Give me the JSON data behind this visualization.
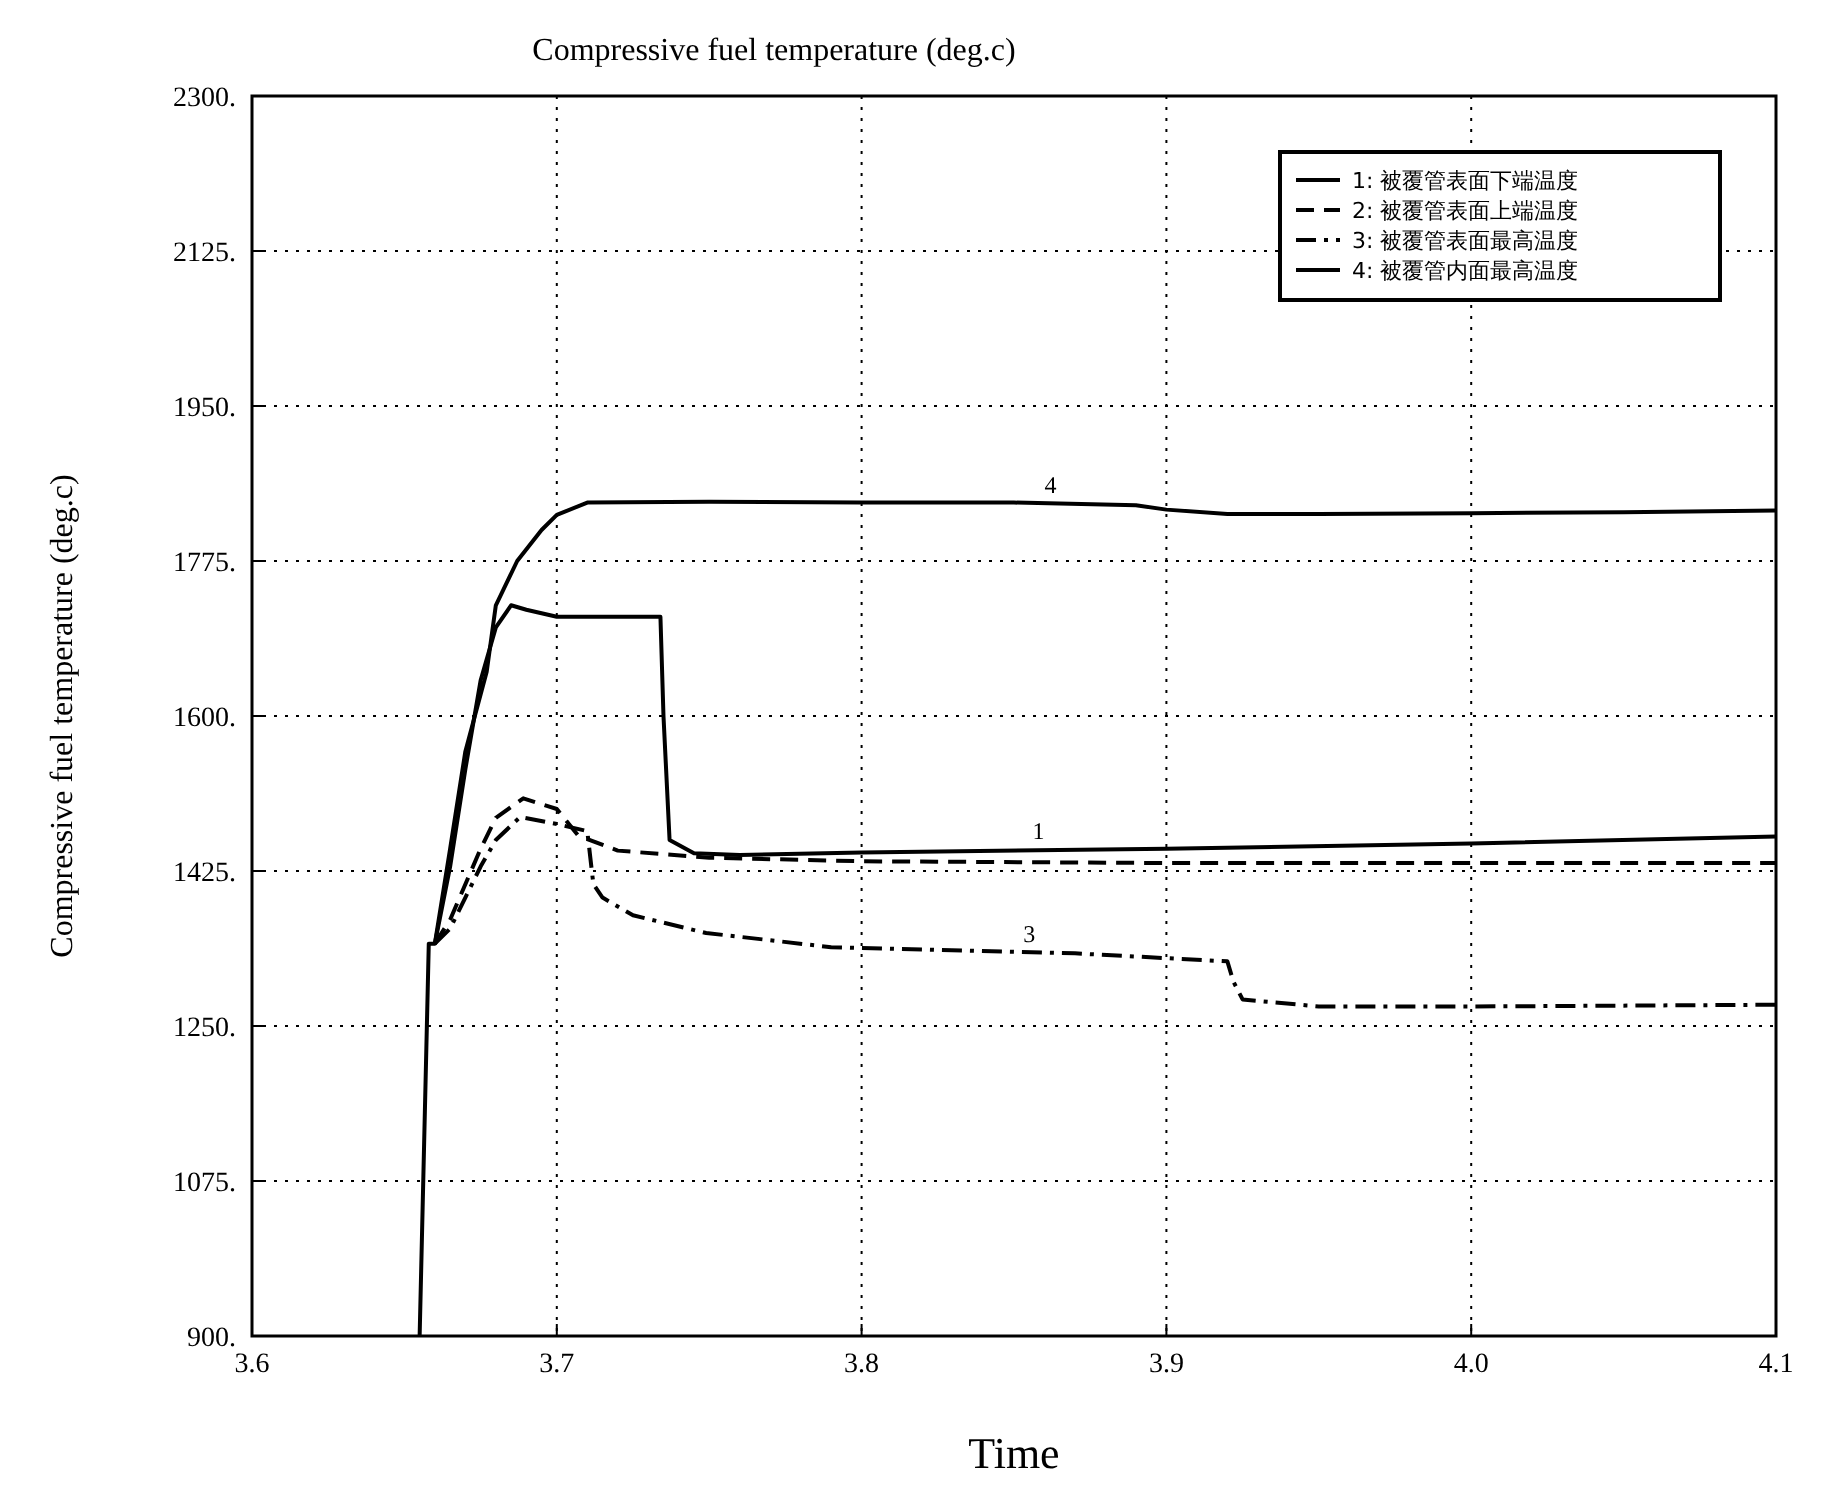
{
  "chart_data": {
    "type": "line",
    "title": "Compressive fuel temperature (deg.c)",
    "xlabel": "Time",
    "ylabel": "Compressive fuel temperature (deg.c)",
    "xlim": [
      3.6,
      4.1
    ],
    "xticks": [
      3.6,
      3.7,
      3.8,
      3.9,
      {
        "value": 4,
        "label": "4.0"
      },
      4.1
    ],
    "ylim": [
      900,
      2300
    ],
    "yticks": [
      {
        "value": 900,
        "label": "900."
      },
      {
        "value": 1075,
        "label": "1075."
      },
      {
        "value": 1250,
        "label": "1250."
      },
      {
        "value": 1425,
        "label": "1425."
      },
      {
        "value": 1600,
        "label": "1600."
      },
      {
        "value": 1775,
        "label": "1775."
      },
      {
        "value": 1950,
        "label": "1950."
      },
      {
        "value": 2125,
        "label": "2125."
      },
      {
        "value": 2300,
        "label": "2300."
      }
    ],
    "grid": true,
    "legend": "top right",
    "series": [
      {
        "name": "1: 被覆管表面下端温度",
        "color": "#000000",
        "line_style": "solid",
        "x": [
          3.655,
          3.658,
          3.66,
          3.665,
          3.67,
          3.675,
          3.68,
          3.685,
          3.69,
          3.7,
          3.72,
          3.734,
          3.735,
          3.737,
          3.745,
          3.76,
          3.8,
          3.9,
          4.0,
          4.1
        ],
        "values": [
          900,
          1343,
          1343,
          1430,
          1540,
          1640,
          1700,
          1725,
          1720,
          1712,
          1712,
          1712,
          1600,
          1460,
          1445,
          1443,
          1446,
          1450,
          1456,
          1464
        ]
      },
      {
        "name": "2: 被覆管表面上端温度",
        "color": "#000000",
        "line_style": "dashed",
        "x": [
          3.66,
          3.665,
          3.67,
          3.675,
          3.68,
          3.689,
          3.7,
          3.707,
          3.72,
          3.75,
          3.8,
          3.9,
          4.0,
          4.1
        ],
        "values": [
          1343,
          1370,
          1410,
          1450,
          1485,
          1507,
          1495,
          1465,
          1448,
          1440,
          1436,
          1434,
          1434,
          1434
        ]
      },
      {
        "name": "3: 被覆管表面最高温度",
        "color": "#000000",
        "line_style": "dashdot",
        "x": [
          3.66,
          3.665,
          3.67,
          3.675,
          3.68,
          3.688,
          3.7,
          3.71,
          3.712,
          3.715,
          3.725,
          3.749,
          3.79,
          3.87,
          3.92,
          3.922,
          3.925,
          3.95,
          4.0,
          4.1
        ],
        "values": [
          1343,
          1360,
          1395,
          1430,
          1460,
          1486,
          1478,
          1470,
          1410,
          1395,
          1375,
          1355,
          1339,
          1332,
          1323,
          1300,
          1280,
          1272,
          1272,
          1274
        ]
      },
      {
        "name": "4: 被覆管内面最高温度",
        "color": "#000000",
        "line_style": "solid",
        "x": [
          3.66,
          3.665,
          3.67,
          3.677,
          3.68,
          3.687,
          3.695,
          3.7,
          3.71,
          3.75,
          3.8,
          3.85,
          3.89,
          3.9,
          3.92,
          3.95,
          4.0,
          4.05,
          4.1
        ],
        "values": [
          1343,
          1450,
          1560,
          1650,
          1725,
          1775,
          1810,
          1827,
          1841,
          1842,
          1841,
          1841,
          1838,
          1833,
          1828,
          1828,
          1829,
          1830,
          1832
        ]
      }
    ],
    "annotations": [
      {
        "text": "4",
        "x": 3.862,
        "y": 1841
      },
      {
        "text": "1",
        "x": 3.858,
        "y": 1450
      },
      {
        "text": "3",
        "x": 3.855,
        "y": 1333
      }
    ]
  }
}
